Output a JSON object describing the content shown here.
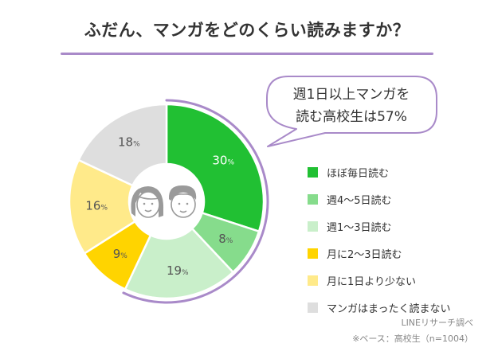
{
  "title": "ふだん、マンガをどのくらい読みますか？",
  "colors": {
    "accent": "#a98ac9",
    "slices": [
      "#21c033",
      "#86dc8c",
      "#c9efca",
      "#ffd400",
      "#ffea8a",
      "#dedede"
    ]
  },
  "callout": {
    "line1": "週1日以上マンガを",
    "line2": "読む高校生は57%"
  },
  "center_icon": "boy-and-girl-face-icons",
  "chart_data": {
    "type": "pie",
    "title": "ふだん、マンガをどのくらい読みますか？",
    "unit": "%",
    "slices": [
      {
        "label": "ほぼ毎日読む",
        "value": 30,
        "color": "#21c033"
      },
      {
        "label": "週4〜5日読む",
        "value": 8,
        "color": "#86dc8c"
      },
      {
        "label": "週1〜3日読む",
        "value": 19,
        "color": "#c9efca"
      },
      {
        "label": "月に2〜3日読む",
        "value": 9,
        "color": "#ffd400"
      },
      {
        "label": "月に1日より少ない",
        "value": 16,
        "color": "#ffea8a"
      },
      {
        "label": "マンガはまったく読まない",
        "value": 18,
        "color": "#dedede"
      }
    ],
    "legend_position": "right",
    "highlight": "first three slices total 57%"
  },
  "legend": [
    "ほぼ毎日読む",
    "週4〜5日読む",
    "週1〜3日読む",
    "月に2〜3日読む",
    "月に1日より少ない",
    "マンガはまったく読まない"
  ],
  "footer": {
    "source": "LINEリサーチ調べ",
    "base": "※ベース：高校生（n=1004）"
  }
}
